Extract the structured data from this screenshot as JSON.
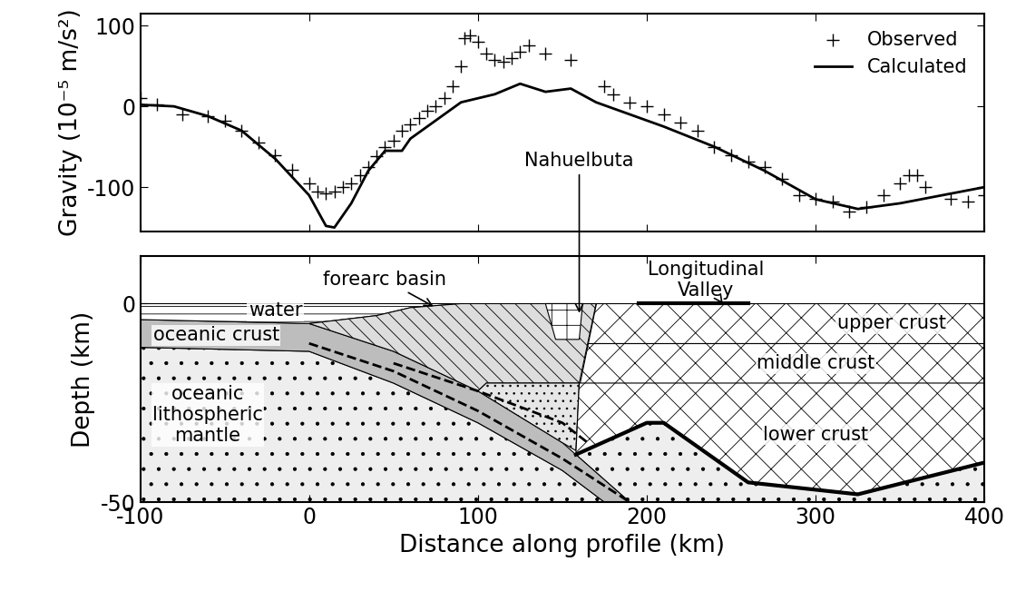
{
  "chart_data": [
    {
      "type": "line",
      "ylabel": "Gravity (10⁻⁵ m/s²)",
      "xlim": [
        -100,
        400
      ],
      "xticks": [
        -100,
        0,
        100,
        200,
        300,
        400
      ],
      "ylim": [
        -155,
        115
      ],
      "yticks": [
        -100,
        0,
        100
      ],
      "tick_labels": "y",
      "legend": "upper right",
      "series": [
        {
          "name": "Observed",
          "type": "scatter",
          "marker": "plus",
          "color": "#000000",
          "x": [
            -100,
            -90,
            -75,
            -60,
            -50,
            -40,
            -30,
            -20,
            -10,
            0,
            5,
            10,
            15,
            20,
            25,
            30,
            35,
            40,
            45,
            50,
            55,
            60,
            65,
            70,
            75,
            80,
            85,
            90,
            92,
            95,
            100,
            105,
            110,
            115,
            120,
            125,
            130,
            140,
            155,
            175,
            180,
            190,
            200,
            210,
            220,
            230,
            240,
            250,
            260,
            270,
            280,
            290,
            300,
            310,
            320,
            330,
            340,
            350,
            355,
            360,
            365,
            380,
            390,
            400
          ],
          "values": [
            10,
            2,
            -10,
            -12,
            -18,
            -30,
            -45,
            -60,
            -78,
            -95,
            -105,
            -108,
            -105,
            -100,
            -95,
            -85,
            -75,
            -62,
            -50,
            -42,
            -30,
            -22,
            -15,
            -5,
            0,
            10,
            25,
            50,
            85,
            88,
            80,
            65,
            57,
            55,
            60,
            68,
            75,
            65,
            58,
            25,
            15,
            5,
            0,
            -10,
            -20,
            -30,
            -50,
            -60,
            -68,
            -75,
            -90,
            -110,
            -115,
            -118,
            -130,
            -125,
            -110,
            -95,
            -85,
            -85,
            -100,
            -115,
            -118,
            -110
          ]
        },
        {
          "name": "Calculated",
          "type": "line",
          "line_style": "solid",
          "color": "#000000",
          "x": [
            -100,
            -80,
            -60,
            -40,
            -20,
            0,
            10,
            15,
            25,
            35,
            45,
            55,
            60,
            70,
            80,
            90,
            100,
            110,
            125,
            140,
            155,
            170,
            190,
            210,
            240,
            270,
            300,
            325,
            350,
            375,
            400
          ],
          "values": [
            2,
            0,
            -12,
            -30,
            -65,
            -110,
            -148,
            -150,
            -120,
            -80,
            -55,
            -55,
            -40,
            -25,
            -10,
            5,
            10,
            15,
            28,
            18,
            22,
            5,
            -10,
            -25,
            -50,
            -80,
            -115,
            -127,
            -120,
            -110,
            -100
          ]
        }
      ]
    },
    {
      "type": "cross_section",
      "xlabel": "Distance along profile (km)",
      "ylabel": "Depth (km)",
      "xlim": [
        -100,
        400
      ],
      "xticks": [
        -100,
        0,
        100,
        200,
        300,
        400
      ],
      "ylim": [
        -50,
        12
      ],
      "yticks": [
        -50,
        0
      ],
      "layers": [
        {
          "color": "#eeeeee",
          "x": [
            -100,
            0,
            50,
            100,
            150,
            175,
            -100
          ],
          "y": [
            -11,
            -12,
            -20,
            -30,
            -42,
            -50,
            -50
          ]
        },
        {
          "color": "#eeeeee",
          "x": [
            158,
            200,
            210,
            260,
            325,
            400,
            400,
            190
          ],
          "y": [
            -38,
            -30,
            -30,
            -45,
            -48,
            -40,
            -50,
            -50
          ]
        },
        {
          "color": "#bdbdbd",
          "x": [
            -100,
            0,
            50,
            100,
            150,
            190,
            175,
            150,
            100,
            50,
            0,
            -100
          ],
          "y": [
            -4,
            -5,
            -12,
            -22,
            -35,
            -50,
            -50,
            -42,
            -30,
            -20,
            -12,
            -11
          ]
        },
        {
          "color": "#ffffff",
          "x": [
            -100,
            90,
            60,
            40,
            0,
            -100
          ],
          "y": [
            0,
            0,
            -1,
            -3,
            -5,
            -4
          ]
        },
        {
          "color": "#dddddd",
          "x": [
            0,
            40,
            60,
            90,
            170,
            160,
            105,
            100,
            50
          ],
          "y": [
            -5,
            -3,
            -1,
            0,
            0,
            -20,
            -20,
            -22,
            -12
          ]
        },
        {
          "color": "#e6e6e6",
          "x": [
            105,
            160,
            158,
            150,
            100
          ],
          "y": [
            -20,
            -20,
            -37,
            -35,
            -22
          ]
        },
        {
          "color": "#ffffff",
          "x": [
            140,
            162,
            160,
            146
          ],
          "y": [
            0,
            0,
            -9,
            -9
          ]
        },
        {
          "color": "#ffffff",
          "x": [
            170,
            400,
            400,
            165
          ],
          "y": [
            0,
            0,
            -10,
            -10
          ]
        },
        {
          "color": "#ffffff",
          "x": [
            165,
            400,
            400,
            160
          ],
          "y": [
            -10,
            -10,
            -20,
            -20
          ]
        },
        {
          "color": "#ffffff",
          "x": [
            160,
            400,
            400,
            325,
            260,
            210,
            200,
            158
          ],
          "y": [
            -20,
            -20,
            -40,
            -48,
            -45,
            -30,
            -30,
            -38
          ]
        }
      ],
      "lines": [
        {
          "line_style": "solid",
          "x": [
            158,
            200,
            210,
            260,
            325,
            400
          ],
          "y": [
            -38,
            -30,
            -30,
            -45,
            -48,
            -40
          ]
        },
        {
          "line_style": "solid",
          "x": [
            195,
            260
          ],
          "y": [
            0,
            0
          ]
        },
        {
          "line_style": "dashed",
          "x": [
            0,
            50,
            100,
            150,
            190
          ],
          "y": [
            -10,
            -17,
            -27,
            -39,
            -50
          ]
        },
        {
          "line_style": "dashed",
          "x": [
            50,
            100,
            150,
            165
          ],
          "y": [
            -15,
            -22,
            -30,
            -35
          ]
        }
      ],
      "annotations": [
        {
          "text": "water",
          "x": -20,
          "y": -1.8
        },
        {
          "text": "oceanic crust",
          "x": -55,
          "y": -8
        },
        {
          "text": "oceanic\nlithospheric\nmantle",
          "x": -60,
          "y": -28
        },
        {
          "text": "forearc basin",
          "x": 45,
          "y": 6,
          "arrow_x": 75,
          "arrow_y": -1
        },
        {
          "text": "Nahuelbuta",
          "x": 160,
          "y": 36,
          "arrow_x": 160,
          "arrow_y": -3
        },
        {
          "text": "Longitudinal\nValley",
          "x": 235,
          "y": 6,
          "arrow_x": 245,
          "arrow_y": 0
        },
        {
          "text": "upper crust",
          "x": 345,
          "y": -5
        },
        {
          "text": "middle crust",
          "x": 300,
          "y": -15
        },
        {
          "text": "lower crust",
          "x": 300,
          "y": -33
        }
      ]
    }
  ]
}
